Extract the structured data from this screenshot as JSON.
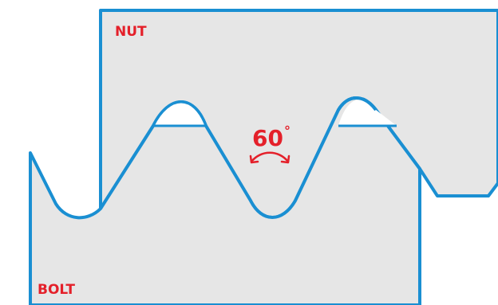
{
  "diagram": {
    "nut_label": "NUT",
    "bolt_label": "BOLT",
    "angle_value": "60",
    "angle_unit": "°"
  },
  "colors": {
    "outline": "#1a8fd2",
    "fill": "#e6e6e6",
    "label": "#e4202a",
    "background": "#ffffff"
  },
  "icons": {
    "angle_arc": "curved-double-arrow-icon"
  }
}
